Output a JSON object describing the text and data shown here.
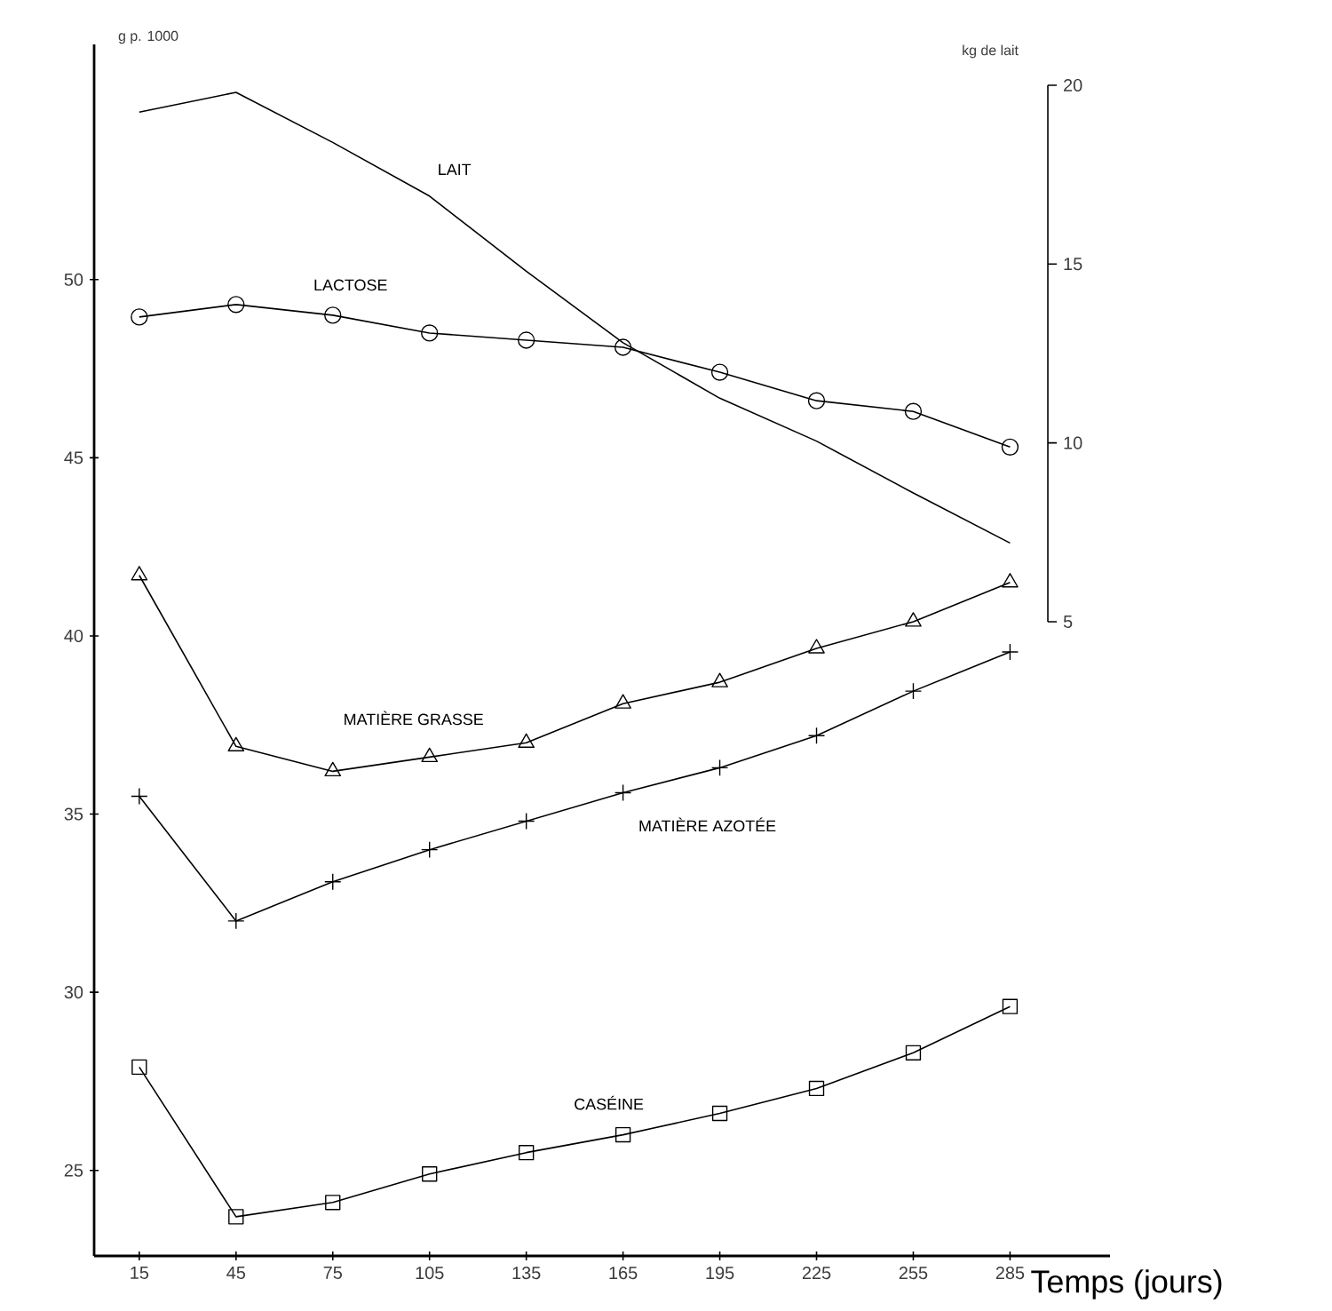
{
  "chart_data": {
    "type": "line",
    "xlabel": "Temps (jours)",
    "ylabel": "g p. 1000",
    "y2label": "kg de lait",
    "x": [
      15,
      45,
      75,
      105,
      135,
      165,
      195,
      225,
      255,
      285
    ],
    "xlim": [
      1,
      316
    ],
    "xticks": [
      15,
      45,
      75,
      105,
      135,
      165,
      195,
      225,
      255,
      285
    ],
    "ylim": [
      22.6,
      56.6
    ],
    "yticks": [
      25,
      30,
      35,
      40,
      45,
      50
    ],
    "y2lim": [
      5,
      20
    ],
    "y2ticks": [
      5,
      10,
      15,
      20
    ],
    "legend": false,
    "line_style": "solid",
    "series": [
      {
        "name": "LAIT",
        "color": "#000000",
        "axis": "y2",
        "marker": "none",
        "values": [
          19.25,
          19.8,
          18.4,
          16.9,
          14.8,
          12.8,
          11.25,
          10.05,
          8.6,
          7.2
        ]
      },
      {
        "name": "LACTOSE",
        "color": "#000000",
        "marker": "circle",
        "values": [
          48.95,
          49.3,
          49.0,
          48.5,
          48.3,
          48.1,
          47.4,
          46.6,
          46.3,
          45.3
        ]
      },
      {
        "name": "MATIÈRE GRASSE",
        "color": "#000000",
        "marker": "triangle",
        "values": [
          41.7,
          36.9,
          36.2,
          36.6,
          37.0,
          38.1,
          38.7,
          39.65,
          40.4,
          41.5
        ]
      },
      {
        "name": "MATIÈRE AZOTÉE",
        "color": "#000000",
        "marker": "cross",
        "values": [
          35.5,
          32.0,
          33.1,
          34.0,
          34.8,
          35.6,
          36.3,
          37.2,
          38.45,
          39.55
        ]
      },
      {
        "name": "CASÉINE",
        "color": "#000000",
        "marker": "square",
        "values": [
          27.9,
          23.7,
          24.1,
          24.9,
          25.5,
          26.0,
          26.6,
          27.3,
          28.3,
          29.6
        ]
      }
    ]
  }
}
